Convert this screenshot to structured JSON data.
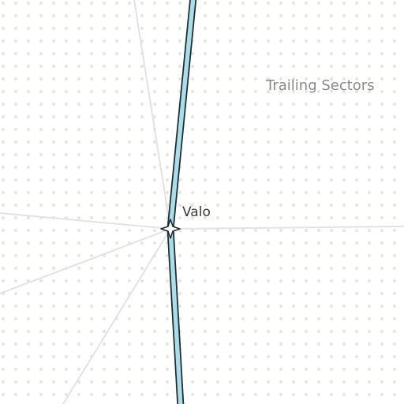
{
  "map": {
    "region_label": "Trailing Sectors",
    "place_label": "Valo",
    "marker_icon": "four-point-star-icon",
    "colors": {
      "background": "#ffffff",
      "dot_pattern": "#e4e4dc",
      "guide_lines": "#e2e2e2",
      "route_fill": "#a8dde9",
      "route_outline": "#1e2a30",
      "region_label": "#8a8a8a",
      "place_label": "#3a3a3a"
    }
  }
}
